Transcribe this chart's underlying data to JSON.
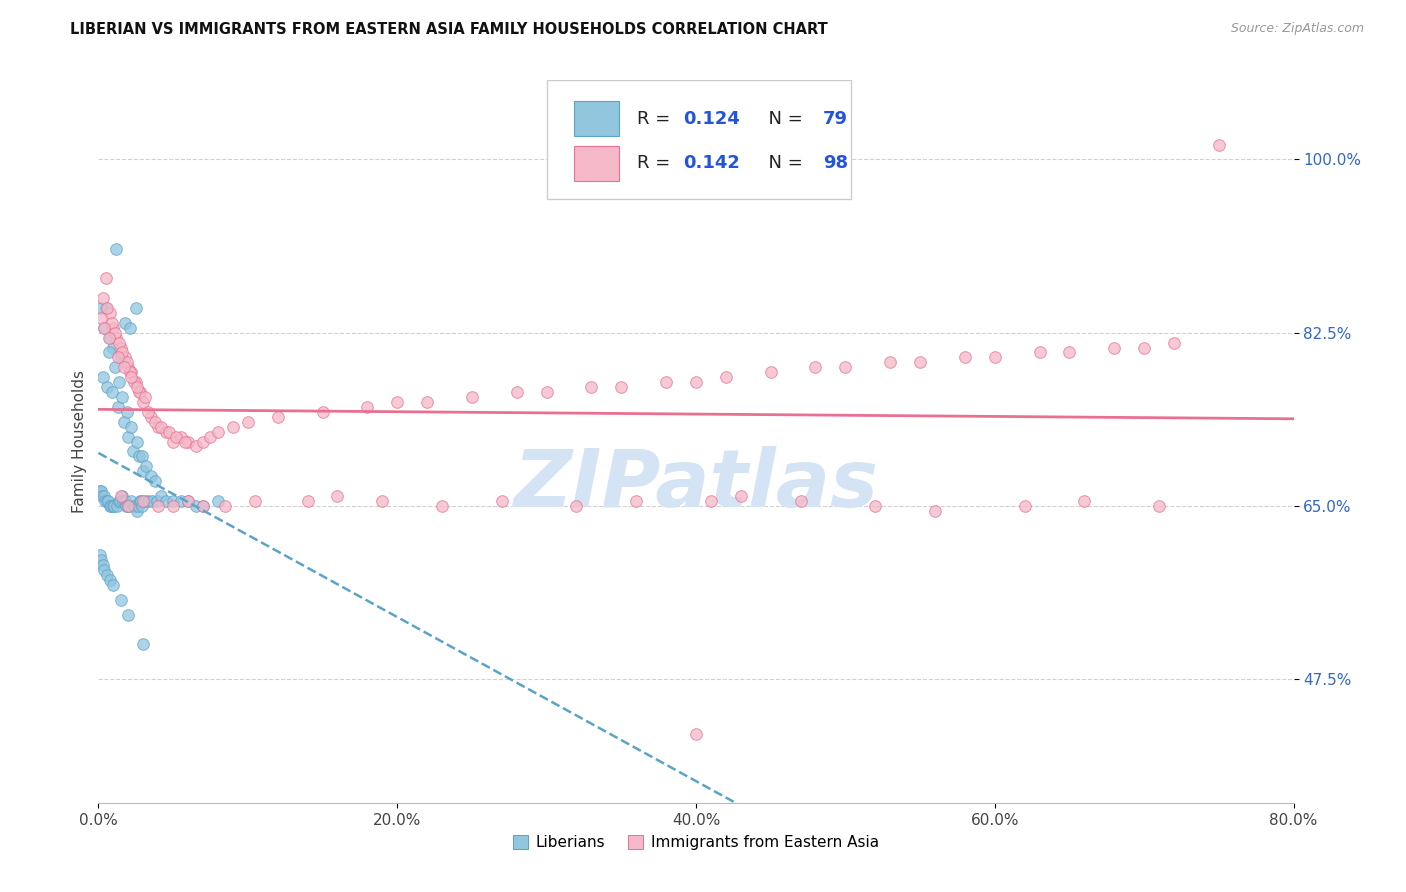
{
  "title": "LIBERIAN VS IMMIGRANTS FROM EASTERN ASIA FAMILY HOUSEHOLDS CORRELATION CHART",
  "source": "Source: ZipAtlas.com",
  "ylabel_label": "Family Households",
  "xlim": [
    0.0,
    80.0
  ],
  "ylim": [
    35.0,
    108.0
  ],
  "x_tick_vals": [
    0.0,
    20.0,
    40.0,
    60.0,
    80.0
  ],
  "x_tick_labels": [
    "0.0%",
    "20.0%",
    "40.0%",
    "60.0%",
    "80.0%"
  ],
  "y_tick_vals": [
    47.5,
    65.0,
    82.5,
    100.0
  ],
  "y_tick_labels": [
    "47.5%",
    "65.0%",
    "82.5%",
    "100.0%"
  ],
  "color_blue": "#92C5DE",
  "color_blue_edge": "#5BA3C9",
  "color_pink": "#F4B8C8",
  "color_pink_edge": "#E87090",
  "color_trendline_blue": "#5BA3C9",
  "color_trendline_pink": "#E87090",
  "watermark_color": "#D4E4F5",
  "liberian_x": [
    1.2,
    0.5,
    1.8,
    2.1,
    2.5,
    0.8,
    1.0,
    1.5,
    0.3,
    0.6,
    0.9,
    1.3,
    1.7,
    2.0,
    2.3,
    2.7,
    3.0,
    0.2,
    0.4,
    0.7,
    1.1,
    1.4,
    1.6,
    1.9,
    2.2,
    2.6,
    2.9,
    3.2,
    3.5,
    3.8,
    0.1,
    0.15,
    0.25,
    0.35,
    0.45,
    0.55,
    0.65,
    0.75,
    0.85,
    0.95,
    1.05,
    1.25,
    1.35,
    1.45,
    1.55,
    1.65,
    1.75,
    1.85,
    1.95,
    2.05,
    2.15,
    2.35,
    2.45,
    2.55,
    2.65,
    2.75,
    2.85,
    2.95,
    3.1,
    3.3,
    3.6,
    3.9,
    4.2,
    4.5,
    5.0,
    5.5,
    6.0,
    6.5,
    7.0,
    8.0,
    0.1,
    0.2,
    0.3,
    0.4,
    0.6,
    0.8,
    1.0,
    1.5,
    2.0,
    3.0
  ],
  "liberian_y": [
    91.0,
    85.0,
    83.5,
    83.0,
    85.0,
    82.0,
    81.0,
    80.0,
    78.0,
    77.0,
    76.5,
    75.0,
    73.5,
    72.0,
    70.5,
    70.0,
    68.5,
    85.0,
    83.0,
    80.5,
    79.0,
    77.5,
    76.0,
    74.5,
    73.0,
    71.5,
    70.0,
    69.0,
    68.0,
    67.5,
    66.5,
    66.5,
    66.0,
    66.0,
    65.5,
    65.5,
    65.5,
    65.0,
    65.0,
    65.0,
    65.0,
    65.0,
    65.5,
    65.5,
    66.0,
    65.5,
    65.5,
    65.0,
    65.0,
    65.0,
    65.5,
    65.0,
    65.0,
    64.5,
    65.0,
    65.5,
    65.5,
    65.0,
    65.5,
    65.5,
    65.5,
    65.5,
    66.0,
    65.5,
    65.5,
    65.5,
    65.5,
    65.0,
    65.0,
    65.5,
    60.0,
    59.5,
    59.0,
    58.5,
    58.0,
    57.5,
    57.0,
    55.5,
    54.0,
    51.0
  ],
  "eastern_asia_x": [
    0.5,
    0.8,
    1.0,
    1.2,
    1.5,
    1.8,
    2.0,
    2.2,
    2.5,
    2.8,
    3.0,
    3.5,
    4.0,
    4.5,
    5.0,
    5.5,
    6.0,
    0.3,
    0.6,
    0.9,
    1.1,
    1.4,
    1.6,
    1.9,
    2.1,
    2.4,
    2.7,
    3.3,
    3.8,
    4.2,
    4.7,
    5.2,
    5.8,
    0.2,
    0.4,
    0.7,
    1.3,
    1.7,
    2.2,
    2.6,
    3.1,
    6.5,
    7.0,
    7.5,
    8.0,
    9.0,
    10.0,
    12.0,
    15.0,
    18.0,
    20.0,
    22.0,
    25.0,
    28.0,
    30.0,
    33.0,
    35.0,
    38.0,
    40.0,
    42.0,
    45.0,
    48.0,
    50.0,
    53.0,
    55.0,
    58.0,
    60.0,
    63.0,
    65.0,
    68.0,
    70.0,
    72.0,
    75.0,
    1.5,
    2.0,
    3.0,
    4.0,
    5.0,
    6.0,
    7.0,
    8.5,
    10.5,
    14.0,
    16.0,
    19.0,
    23.0,
    27.0,
    32.0,
    36.0,
    41.0,
    43.0,
    47.0,
    52.0,
    56.0,
    62.0,
    66.0,
    71.0,
    40.0
  ],
  "eastern_asia_y": [
    88.0,
    84.5,
    83.0,
    82.0,
    81.0,
    80.0,
    79.0,
    78.5,
    77.5,
    76.5,
    75.5,
    74.0,
    73.0,
    72.5,
    71.5,
    72.0,
    71.5,
    86.0,
    85.0,
    83.5,
    82.5,
    81.5,
    80.5,
    79.5,
    78.5,
    77.5,
    76.5,
    74.5,
    73.5,
    73.0,
    72.5,
    72.0,
    71.5,
    84.0,
    83.0,
    82.0,
    80.0,
    79.0,
    78.0,
    77.0,
    76.0,
    71.0,
    71.5,
    72.0,
    72.5,
    73.0,
    73.5,
    74.0,
    74.5,
    75.0,
    75.5,
    75.5,
    76.0,
    76.5,
    76.5,
    77.0,
    77.0,
    77.5,
    77.5,
    78.0,
    78.5,
    79.0,
    79.0,
    79.5,
    79.5,
    80.0,
    80.0,
    80.5,
    80.5,
    81.0,
    81.0,
    81.5,
    101.5,
    66.0,
    65.0,
    65.5,
    65.0,
    65.0,
    65.5,
    65.0,
    65.0,
    65.5,
    65.5,
    66.0,
    65.5,
    65.0,
    65.5,
    65.0,
    65.5,
    65.5,
    66.0,
    65.5,
    65.0,
    64.5,
    65.0,
    65.5,
    65.0,
    42.0
  ]
}
